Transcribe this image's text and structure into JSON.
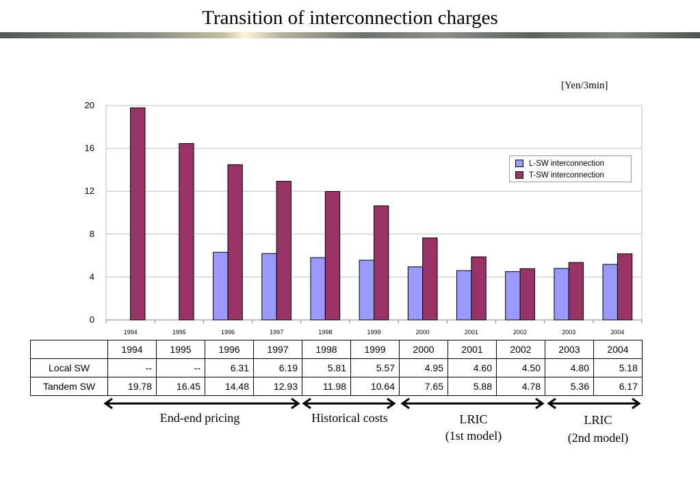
{
  "title": "Transition of interconnection charges",
  "unit_label": "[Yen/3min]",
  "colors": {
    "lsw": "#9999ff",
    "tsw": "#993366",
    "grid": "#c0c0c0"
  },
  "chart_data": {
    "type": "bar",
    "categories": [
      "1994",
      "1995",
      "1996",
      "1997",
      "1998",
      "1999",
      "2000",
      "2001",
      "2002",
      "2003",
      "2004"
    ],
    "series": [
      {
        "name": "L-SW interconnection",
        "values": [
          null,
          null,
          6.31,
          6.19,
          5.81,
          5.57,
          4.95,
          4.6,
          4.5,
          4.8,
          5.18
        ]
      },
      {
        "name": "T-SW interconnection",
        "values": [
          19.78,
          16.45,
          14.48,
          12.93,
          11.98,
          10.64,
          7.65,
          5.88,
          4.78,
          5.36,
          6.17
        ]
      }
    ],
    "yticks": [
      0,
      4,
      8,
      12,
      16,
      20
    ],
    "ylim": [
      0,
      20
    ],
    "ylabel": "[Yen/3min]",
    "grid": true,
    "legend": "top-right"
  },
  "table": {
    "years": [
      "1994",
      "1995",
      "1996",
      "1997",
      "1998",
      "1999",
      "2000",
      "2001",
      "2002",
      "2003",
      "2004"
    ],
    "rows": [
      {
        "label": "Local SW",
        "values": [
          "--",
          "--",
          "6.31",
          "6.19",
          "5.81",
          "5.57",
          "4.95",
          "4.60",
          "4.50",
          "4.80",
          "5.18"
        ]
      },
      {
        "label": "Tandem SW",
        "values": [
          "19.78",
          "16.45",
          "14.48",
          "12.93",
          "11.98",
          "10.64",
          "7.65",
          "5.88",
          "4.78",
          "5.36",
          "6.17"
        ]
      }
    ]
  },
  "periods": [
    {
      "line1": "End-end pricing",
      "line2": ""
    },
    {
      "line1": "Historical costs",
      "line2": ""
    },
    {
      "line1": "LRIC",
      "line2": "(1st model)"
    },
    {
      "line1": "LRIC",
      "line2": "(2nd model)"
    }
  ]
}
